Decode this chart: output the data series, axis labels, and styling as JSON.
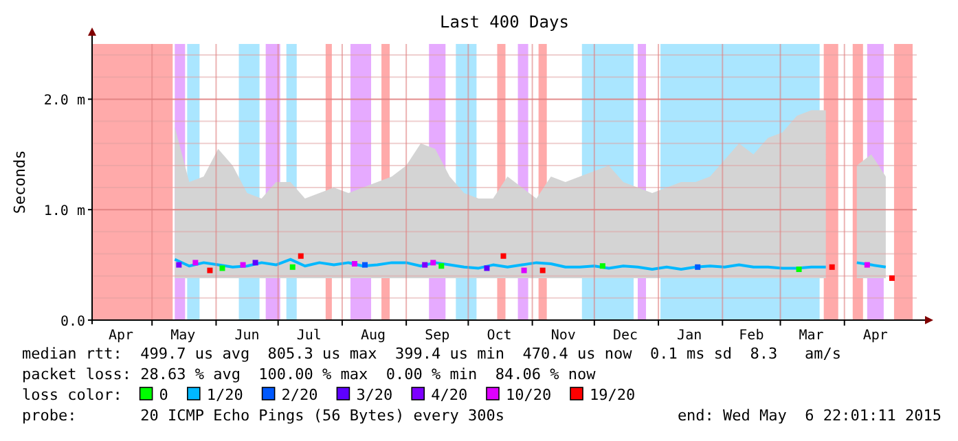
{
  "chart_data": {
    "type": "line",
    "title": "Last 400 Days",
    "ylabel": "Seconds",
    "xlim": [
      "2014-04-02",
      "2015-05-06"
    ],
    "ylim": [
      0,
      2.5
    ],
    "yticks": [
      {
        "value": 0,
        "label": "0.0"
      },
      {
        "value": 0.2,
        "label": null
      },
      {
        "value": 0.4,
        "label": null
      },
      {
        "value": 0.6,
        "label": null
      },
      {
        "value": 0.8,
        "label": null
      },
      {
        "value": 1,
        "label": "1.0 m"
      },
      {
        "value": 1.2,
        "label": null
      },
      {
        "value": 1.4,
        "label": null
      },
      {
        "value": 1.6,
        "label": null
      },
      {
        "value": 1.8,
        "label": null
      },
      {
        "value": 2,
        "label": "2.0 m"
      },
      {
        "value": 2.2,
        "label": null
      },
      {
        "value": 2.4,
        "label": null
      }
    ],
    "xticks": [
      {
        "value": "2014-04-16",
        "label": "Apr"
      },
      {
        "value": "2014-05-01",
        "label": null
      },
      {
        "value": "2014-05-16",
        "label": "May"
      },
      {
        "value": "2014-06-01",
        "label": null
      },
      {
        "value": "2014-06-16",
        "label": "Jun"
      },
      {
        "value": "2014-07-01",
        "label": null
      },
      {
        "value": "2014-07-16",
        "label": "Jul"
      },
      {
        "value": "2014-08-01",
        "label": null
      },
      {
        "value": "2014-08-16",
        "label": "Aug"
      },
      {
        "value": "2014-09-01",
        "label": null
      },
      {
        "value": "2014-09-16",
        "label": "Sep"
      },
      {
        "value": "2014-10-01",
        "label": null
      },
      {
        "value": "2014-10-16",
        "label": "Oct"
      },
      {
        "value": "2014-11-01",
        "label": null
      },
      {
        "value": "2014-11-16",
        "label": "Nov"
      },
      {
        "value": "2014-12-01",
        "label": null
      },
      {
        "value": "2014-12-16",
        "label": "Dec"
      },
      {
        "value": "2015-01-01",
        "label": null
      },
      {
        "value": "2015-01-16",
        "label": "Jan"
      },
      {
        "value": "2015-02-01",
        "label": null
      },
      {
        "value": "2015-02-15",
        "label": "Feb"
      },
      {
        "value": "2015-03-01",
        "label": null
      },
      {
        "value": "2015-03-16",
        "label": "Mar"
      },
      {
        "value": "2015-04-01",
        "label": null
      },
      {
        "value": "2015-04-16",
        "label": "Apr"
      }
    ],
    "grid": true,
    "legend": "bottom",
    "legend_title": "loss color:",
    "bands": [
      {
        "axis": "x",
        "from": "2014-04-02",
        "to": "2014-05-11",
        "color": "#ffaaaa"
      },
      {
        "axis": "x",
        "from": "2014-05-12",
        "to": "2014-05-17",
        "color": "#e6aaff"
      },
      {
        "axis": "x",
        "from": "2014-05-18",
        "to": "2014-05-24",
        "color": "#aae6ff"
      },
      {
        "axis": "x",
        "from": "2014-06-12",
        "to": "2014-06-22",
        "color": "#aae6ff"
      },
      {
        "axis": "x",
        "from": "2014-06-25",
        "to": "2014-07-02",
        "color": "#e6aaff"
      },
      {
        "axis": "x",
        "from": "2014-07-05",
        "to": "2014-07-10",
        "color": "#aae6ff"
      },
      {
        "axis": "x",
        "from": "2014-07-24",
        "to": "2014-07-27",
        "color": "#ffaaaa"
      },
      {
        "axis": "x",
        "from": "2014-08-05",
        "to": "2014-08-15",
        "color": "#e6aaff"
      },
      {
        "axis": "x",
        "from": "2014-08-20",
        "to": "2014-08-24",
        "color": "#ffaaaa"
      },
      {
        "axis": "x",
        "from": "2014-09-12",
        "to": "2014-09-20",
        "color": "#e6aaff"
      },
      {
        "axis": "x",
        "from": "2014-09-25",
        "to": "2014-10-05",
        "color": "#aae6ff"
      },
      {
        "axis": "x",
        "from": "2014-10-15",
        "to": "2014-10-19",
        "color": "#ffaaaa"
      },
      {
        "axis": "x",
        "from": "2014-10-25",
        "to": "2014-10-30",
        "color": "#e6aaff"
      },
      {
        "axis": "x",
        "from": "2014-11-04",
        "to": "2014-11-08",
        "color": "#ffaaaa"
      },
      {
        "axis": "x",
        "from": "2014-11-25",
        "to": "2014-12-20",
        "color": "#aae6ff"
      },
      {
        "axis": "x",
        "from": "2014-12-22",
        "to": "2014-12-26",
        "color": "#e6aaff"
      },
      {
        "axis": "x",
        "from": "2015-01-02",
        "to": "2015-03-20",
        "color": "#aae6ff"
      },
      {
        "axis": "x",
        "from": "2015-03-22",
        "to": "2015-03-29",
        "color": "#ffaaaa"
      },
      {
        "axis": "x",
        "from": "2015-04-05",
        "to": "2015-04-10",
        "color": "#ffaaaa"
      },
      {
        "axis": "x",
        "from": "2015-04-12",
        "to": "2015-04-20",
        "color": "#e6aaff"
      },
      {
        "axis": "x",
        "from": "2015-04-25",
        "to": "2015-05-04",
        "color": "#ffaaaa"
      }
    ],
    "series": [
      {
        "name": "0",
        "color": "#00ff00",
        "type": "scatter",
        "marker": "square",
        "x": [
          "2014-06-04",
          "2014-07-08",
          "2014-09-18",
          "2014-12-05",
          "2015-03-10"
        ],
        "values": [
          0.47,
          0.48,
          0.49,
          0.49,
          0.46
        ]
      },
      {
        "name": "1/20",
        "color": "#00b8ff",
        "x": [
          "2014-05-12",
          "2014-05-19",
          "2014-05-26",
          "2014-06-02",
          "2014-06-09",
          "2014-06-16",
          "2014-06-23",
          "2014-06-30",
          "2014-07-07",
          "2014-07-14",
          "2014-07-21",
          "2014-07-28",
          "2014-08-04",
          "2014-08-11",
          "2014-08-18",
          "2014-08-25",
          "2014-09-01",
          "2014-09-08",
          "2014-09-15",
          "2014-09-22",
          "2014-09-29",
          "2014-10-06",
          "2014-10-13",
          "2014-10-20",
          "2014-10-27",
          "2014-11-03",
          "2014-11-10",
          "2014-11-17",
          "2014-11-24",
          "2014-12-01",
          "2014-12-08",
          "2014-12-15",
          "2014-12-22",
          "2014-12-29",
          "2015-01-05",
          "2015-01-12",
          "2015-01-19",
          "2015-01-26",
          "2015-02-02",
          "2015-02-09",
          "2015-02-16",
          "2015-02-23",
          "2015-03-02",
          "2015-03-09",
          "2015-03-16",
          "2015-03-23",
          "2015-03-30",
          "2015-04-07",
          "2015-04-14",
          "2015-04-21"
        ],
        "values": [
          0.55,
          0.49,
          0.52,
          0.5,
          0.48,
          0.49,
          0.52,
          0.5,
          0.55,
          0.49,
          0.52,
          0.5,
          0.52,
          0.49,
          0.5,
          0.52,
          0.52,
          0.49,
          0.52,
          0.5,
          0.48,
          0.47,
          0.5,
          0.48,
          0.5,
          0.52,
          0.51,
          0.48,
          0.48,
          0.49,
          0.47,
          0.49,
          0.48,
          0.46,
          0.48,
          0.46,
          0.48,
          0.49,
          0.48,
          0.5,
          0.48,
          0.48,
          0.47,
          0.47,
          0.48,
          0.48,
          null,
          0.52,
          0.5,
          0.48
        ],
        "lower": [
          0.38,
          0.38,
          0.38,
          0.38,
          0.38,
          0.38,
          0.38,
          0.38,
          0.38,
          0.38,
          0.38,
          0.38,
          0.38,
          0.38,
          0.38,
          0.38,
          0.38,
          0.38,
          0.38,
          0.38,
          0.38,
          0.38,
          0.38,
          0.38,
          0.38,
          0.38,
          0.38,
          0.38,
          0.38,
          0.38,
          0.38,
          0.38,
          0.38,
          0.38,
          0.38,
          0.38,
          0.38,
          0.38,
          0.38,
          0.38,
          0.38,
          0.38,
          0.38,
          0.38,
          0.38,
          0.38,
          null,
          0.38,
          0.38,
          0.38
        ],
        "upper": [
          1.75,
          1.25,
          1.3,
          1.55,
          1.4,
          1.15,
          1.1,
          1.25,
          1.25,
          1.1,
          1.15,
          1.2,
          1.15,
          1.2,
          1.25,
          1.3,
          1.4,
          1.6,
          1.55,
          1.3,
          1.15,
          1.1,
          1.1,
          1.3,
          1.2,
          1.1,
          1.3,
          1.25,
          1.3,
          1.35,
          1.4,
          1.25,
          1.2,
          1.15,
          1.2,
          1.25,
          1.25,
          1.3,
          1.45,
          1.6,
          1.5,
          1.65,
          1.7,
          1.85,
          1.9,
          1.9,
          null,
          1.4,
          1.5,
          1.3
        ]
      },
      {
        "name": "2/20",
        "color": "#0059ff",
        "type": "scatter",
        "marker": "square",
        "x": [
          "2014-08-12",
          "2015-01-20"
        ],
        "values": [
          0.5,
          0.48
        ]
      },
      {
        "name": "3/20",
        "color": "#5e00ff",
        "type": "scatter",
        "marker": "square",
        "x": [
          "2014-06-20",
          "2014-10-10"
        ],
        "values": [
          0.52,
          0.47
        ]
      },
      {
        "name": "4/20",
        "color": "#7e00ff",
        "type": "scatter",
        "marker": "square",
        "x": [
          "2014-05-14",
          "2014-09-10"
        ],
        "values": [
          0.5,
          0.5
        ]
      },
      {
        "name": "10/20",
        "color": "#dd00ff",
        "type": "scatter",
        "marker": "square",
        "x": [
          "2014-05-22",
          "2014-06-14",
          "2014-08-07",
          "2014-09-14",
          "2014-10-28",
          "2015-04-12"
        ],
        "values": [
          0.52,
          0.5,
          0.51,
          0.52,
          0.45,
          0.5
        ]
      },
      {
        "name": "19/20",
        "color": "#ff0000",
        "type": "scatter",
        "marker": "square",
        "x": [
          "2014-05-29",
          "2014-07-12",
          "2014-10-18",
          "2014-11-06",
          "2015-03-26",
          "2015-04-24"
        ],
        "values": [
          0.45,
          0.58,
          0.58,
          0.45,
          0.48,
          0.38
        ]
      }
    ],
    "annotations": [
      "median rtt:  499.7 us avg  805.3 us max  399.4 us min  470.4 us now  0.1 ms sd  8.3   am/s",
      "packet loss: 28.63 % avg  100.00 % max  0.00 % min  84.06 % now",
      "probe:       20 ICMP Echo Pings (56 Bytes) every 300s",
      "end: Wed May  6 22:01:11 2015"
    ]
  }
}
